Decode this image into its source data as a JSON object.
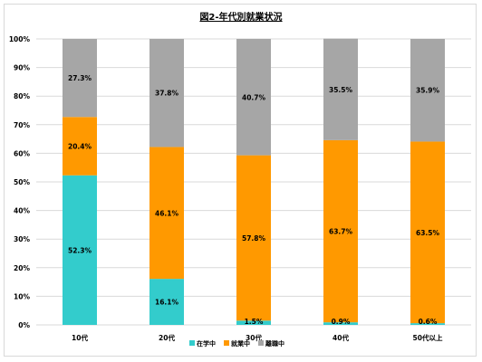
{
  "chart_data": {
    "type": "bar",
    "stacked": true,
    "title": "図2-年代別就業状況",
    "categories": [
      "10代",
      "20代",
      "30代",
      "40代",
      "50代以上"
    ],
    "ylim": [
      0,
      100
    ],
    "yticks": [
      "0%",
      "10%",
      "20%",
      "30%",
      "40%",
      "50%",
      "60%",
      "70%",
      "80%",
      "90%",
      "100%"
    ],
    "grid": true,
    "legend_position": "bottom",
    "series": [
      {
        "name": "在学中",
        "color": "#33cccc",
        "values": [
          52.3,
          16.1,
          1.5,
          0.9,
          0.6
        ],
        "labels": [
          "52.3%",
          "16.1%",
          "1.5%",
          "0.9%",
          "0.6%"
        ]
      },
      {
        "name": "就業中",
        "color": "#ff9900",
        "values": [
          20.4,
          46.1,
          57.8,
          63.7,
          63.5
        ],
        "labels": [
          "20.4%",
          "46.1%",
          "57.8%",
          "63.7%",
          "63.5%"
        ]
      },
      {
        "name": "離職中",
        "color": "#a6a6a6",
        "values": [
          27.3,
          37.8,
          40.7,
          35.5,
          35.9
        ],
        "labels": [
          "27.3%",
          "37.8%",
          "40.7%",
          "35.5%",
          "35.9%"
        ]
      }
    ]
  }
}
